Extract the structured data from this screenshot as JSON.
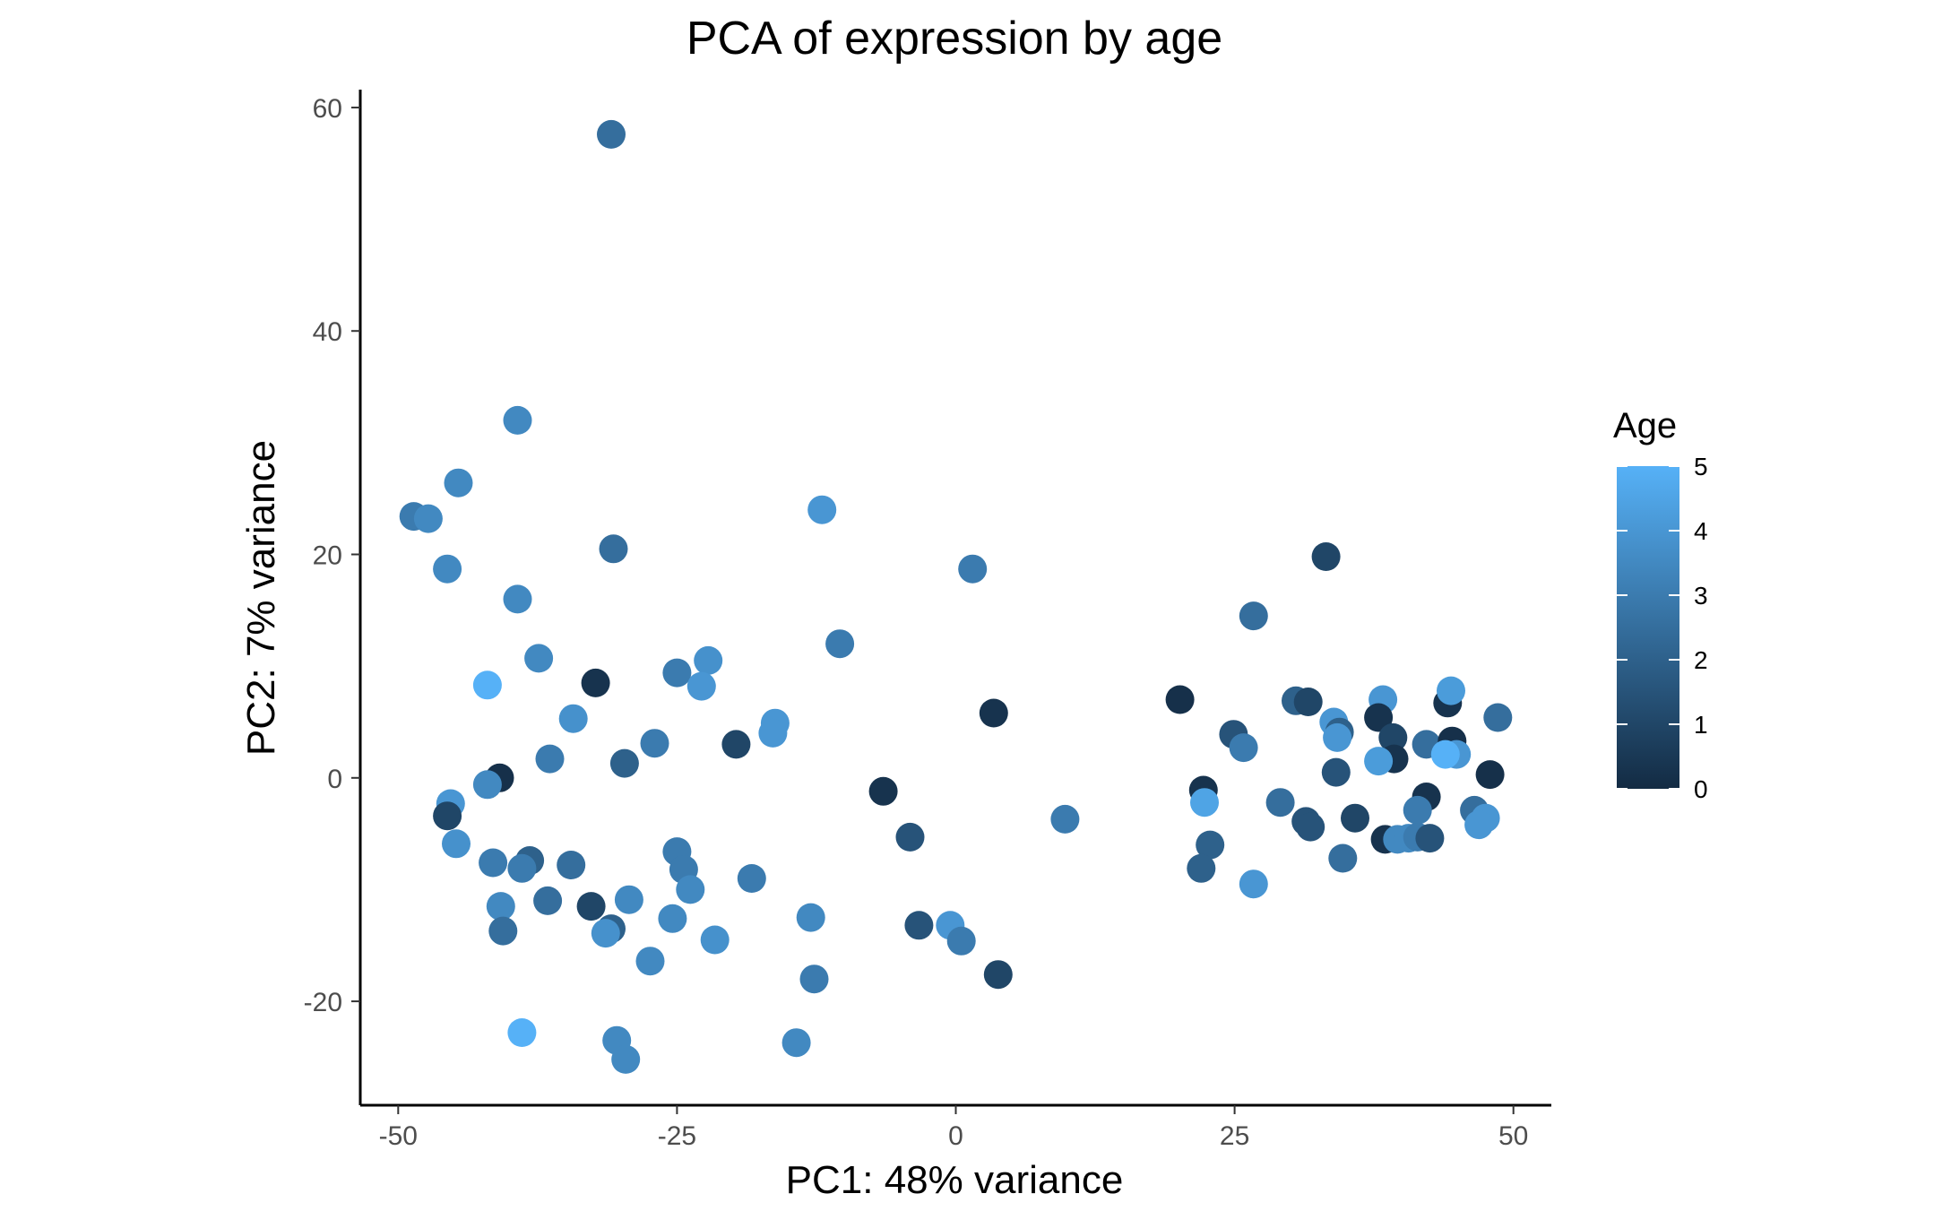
{
  "chart_data": {
    "type": "scatter",
    "title": "PCA of expression by age",
    "xlabel": "PC1: 48% variance",
    "ylabel": "PC2: 7% variance",
    "xlim": [
      -53.4,
      53.4
    ],
    "ylim": [
      -29.3,
      61.6
    ],
    "x_ticks": [
      -50,
      -25,
      0,
      25,
      50
    ],
    "y_ticks": [
      -20,
      0,
      20,
      40,
      60
    ],
    "x_tick_labels": [
      "-50",
      "-25",
      "0",
      "25",
      "50"
    ],
    "y_tick_labels": [
      "-20",
      "0",
      "20",
      "40",
      "60"
    ],
    "grid": false,
    "legend": {
      "title": "Age",
      "position": "right",
      "type": "colorbar",
      "range": [
        0,
        5
      ],
      "ticks": [
        0,
        1,
        2,
        3,
        4,
        5
      ],
      "tick_labels": [
        "0",
        "1",
        "2",
        "3",
        "4",
        "5"
      ],
      "low_color": "#132B43",
      "high_color": "#56B1F7"
    },
    "points": [
      {
        "x": -30.9,
        "y": 57.6,
        "age": 2.5
      },
      {
        "x": -39.3,
        "y": 32.0,
        "age": 3.5
      },
      {
        "x": -44.6,
        "y": 26.4,
        "age": 3.5
      },
      {
        "x": -48.6,
        "y": 23.4,
        "age": 3.0
      },
      {
        "x": -47.3,
        "y": 23.2,
        "age": 3.5
      },
      {
        "x": -12.0,
        "y": 24.0,
        "age": 4.0
      },
      {
        "x": -30.7,
        "y": 20.5,
        "age": 2.5
      },
      {
        "x": -45.6,
        "y": 18.7,
        "age": 3.5
      },
      {
        "x": -39.3,
        "y": 16.0,
        "age": 3.5
      },
      {
        "x": 1.5,
        "y": 18.7,
        "age": 3.0
      },
      {
        "x": -37.4,
        "y": 10.7,
        "age": 3.5
      },
      {
        "x": -10.4,
        "y": 12.0,
        "age": 3.0
      },
      {
        "x": -42.0,
        "y": 8.3,
        "age": 5.0
      },
      {
        "x": -32.3,
        "y": 8.5,
        "age": 0.3
      },
      {
        "x": -25.0,
        "y": 9.4,
        "age": 3.0
      },
      {
        "x": -22.2,
        "y": 10.5,
        "age": 3.8
      },
      {
        "x": -22.8,
        "y": 8.2,
        "age": 4.0
      },
      {
        "x": -34.3,
        "y": 5.3,
        "age": 3.8
      },
      {
        "x": -16.2,
        "y": 4.9,
        "age": 4.0
      },
      {
        "x": -16.4,
        "y": 4.0,
        "age": 4.0
      },
      {
        "x": -27.0,
        "y": 3.1,
        "age": 3.0
      },
      {
        "x": -19.7,
        "y": 3.0,
        "age": 1.0
      },
      {
        "x": 3.4,
        "y": 5.8,
        "age": 0.3
      },
      {
        "x": -36.4,
        "y": 1.7,
        "age": 3.0
      },
      {
        "x": -29.7,
        "y": 1.3,
        "age": 2.0
      },
      {
        "x": -40.9,
        "y": 0.0,
        "age": 0.2
      },
      {
        "x": -42.0,
        "y": -0.6,
        "age": 3.5
      },
      {
        "x": -6.5,
        "y": -1.2,
        "age": 0.3
      },
      {
        "x": -45.3,
        "y": -2.3,
        "age": 4.0
      },
      {
        "x": -45.6,
        "y": -3.4,
        "age": 1.0
      },
      {
        "x": -4.1,
        "y": -5.3,
        "age": 1.5
      },
      {
        "x": 9.8,
        "y": -3.7,
        "age": 3.0
      },
      {
        "x": -44.8,
        "y": -5.9,
        "age": 3.8
      },
      {
        "x": -41.5,
        "y": -7.6,
        "age": 3.0
      },
      {
        "x": -38.2,
        "y": -7.4,
        "age": 2.0
      },
      {
        "x": -38.9,
        "y": -8.1,
        "age": 3.0
      },
      {
        "x": -34.5,
        "y": -7.8,
        "age": 2.5
      },
      {
        "x": -25.0,
        "y": -6.6,
        "age": 3.0
      },
      {
        "x": -24.4,
        "y": -8.2,
        "age": 3.0
      },
      {
        "x": -18.3,
        "y": -9.0,
        "age": 3.0
      },
      {
        "x": -23.8,
        "y": -10.0,
        "age": 3.5
      },
      {
        "x": -40.8,
        "y": -11.5,
        "age": 3.5
      },
      {
        "x": -36.6,
        "y": -11.0,
        "age": 2.5
      },
      {
        "x": -32.7,
        "y": -11.5,
        "age": 1.0
      },
      {
        "x": -29.3,
        "y": -10.9,
        "age": 3.5
      },
      {
        "x": -30.9,
        "y": -13.5,
        "age": 2.0
      },
      {
        "x": -31.4,
        "y": -13.9,
        "age": 3.8
      },
      {
        "x": -25.4,
        "y": -12.6,
        "age": 3.5
      },
      {
        "x": -40.6,
        "y": -13.7,
        "age": 2.5
      },
      {
        "x": -21.6,
        "y": -14.5,
        "age": 3.8
      },
      {
        "x": -13.0,
        "y": -12.5,
        "age": 3.5
      },
      {
        "x": -3.3,
        "y": -13.2,
        "age": 1.5
      },
      {
        "x": -0.5,
        "y": -13.2,
        "age": 4.0
      },
      {
        "x": 0.5,
        "y": -14.6,
        "age": 3.0
      },
      {
        "x": -27.4,
        "y": -16.4,
        "age": 3.5
      },
      {
        "x": -12.7,
        "y": -18.0,
        "age": 3.0
      },
      {
        "x": 3.8,
        "y": -17.6,
        "age": 1.0
      },
      {
        "x": -38.9,
        "y": -22.8,
        "age": 5.0
      },
      {
        "x": -30.4,
        "y": -23.5,
        "age": 3.5
      },
      {
        "x": -14.3,
        "y": -23.7,
        "age": 3.5
      },
      {
        "x": -29.6,
        "y": -25.2,
        "age": 3.5
      },
      {
        "x": 33.2,
        "y": 19.8,
        "age": 1.0
      },
      {
        "x": 26.7,
        "y": 14.5,
        "age": 2.5
      },
      {
        "x": 20.1,
        "y": 7.0,
        "age": 0.2
      },
      {
        "x": 30.5,
        "y": 6.9,
        "age": 2.0
      },
      {
        "x": 31.6,
        "y": 6.8,
        "age": 1.0
      },
      {
        "x": 38.3,
        "y": 7.0,
        "age": 4.0
      },
      {
        "x": 44.1,
        "y": 6.7,
        "age": 0.3
      },
      {
        "x": 44.4,
        "y": 7.8,
        "age": 4.2
      },
      {
        "x": 48.6,
        "y": 5.4,
        "age": 2.5
      },
      {
        "x": 37.9,
        "y": 5.4,
        "age": 0.3
      },
      {
        "x": 33.9,
        "y": 5.0,
        "age": 4.0
      },
      {
        "x": 24.9,
        "y": 3.9,
        "age": 1.5
      },
      {
        "x": 34.4,
        "y": 4.1,
        "age": 2.0
      },
      {
        "x": 34.2,
        "y": 3.6,
        "age": 4.0
      },
      {
        "x": 39.2,
        "y": 3.6,
        "age": 1.0
      },
      {
        "x": 42.2,
        "y": 3.0,
        "age": 2.5
      },
      {
        "x": 44.5,
        "y": 3.3,
        "age": 0.2
      },
      {
        "x": 25.8,
        "y": 2.7,
        "age": 3.0
      },
      {
        "x": 44.9,
        "y": 2.1,
        "age": 4.0
      },
      {
        "x": 43.9,
        "y": 2.1,
        "age": 5.0
      },
      {
        "x": 39.3,
        "y": 1.7,
        "age": 0.3
      },
      {
        "x": 37.9,
        "y": 1.5,
        "age": 4.2
      },
      {
        "x": 34.1,
        "y": 0.5,
        "age": 1.5
      },
      {
        "x": 47.9,
        "y": 0.3,
        "age": 0.2
      },
      {
        "x": 22.2,
        "y": -1.1,
        "age": 0.3
      },
      {
        "x": 22.3,
        "y": -2.2,
        "age": 4.5
      },
      {
        "x": 29.1,
        "y": -2.2,
        "age": 2.5
      },
      {
        "x": 42.2,
        "y": -1.7,
        "age": 0.3
      },
      {
        "x": 41.4,
        "y": -2.9,
        "age": 3.0
      },
      {
        "x": 46.5,
        "y": -2.9,
        "age": 2.5
      },
      {
        "x": 35.8,
        "y": -3.6,
        "age": 1.0
      },
      {
        "x": 31.4,
        "y": -3.9,
        "age": 1.5
      },
      {
        "x": 31.8,
        "y": -4.4,
        "age": 1.5
      },
      {
        "x": 47.5,
        "y": -3.6,
        "age": 4.0
      },
      {
        "x": 46.9,
        "y": -4.2,
        "age": 4.0
      },
      {
        "x": 22.8,
        "y": -6.0,
        "age": 2.0
      },
      {
        "x": 38.5,
        "y": -5.5,
        "age": 0.3
      },
      {
        "x": 39.6,
        "y": -5.5,
        "age": 3.5
      },
      {
        "x": 40.6,
        "y": -5.4,
        "age": 3.5
      },
      {
        "x": 41.4,
        "y": -5.3,
        "age": 3.0
      },
      {
        "x": 42.5,
        "y": -5.4,
        "age": 1.5
      },
      {
        "x": 22.0,
        "y": -8.1,
        "age": 2.0
      },
      {
        "x": 34.7,
        "y": -7.2,
        "age": 2.5
      },
      {
        "x": 26.7,
        "y": -9.5,
        "age": 4.0
      }
    ]
  }
}
